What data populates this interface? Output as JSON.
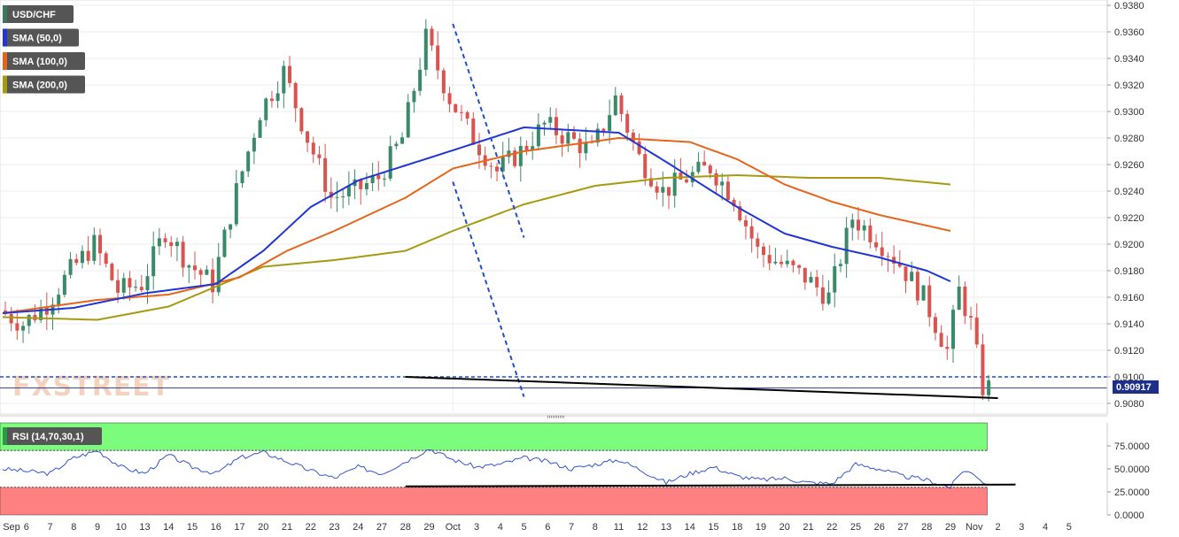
{
  "chart_data": [
    {
      "type": "candlestick",
      "symbol": "USD/CHF",
      "legend": [
        {
          "label": "USD/CHF",
          "color": "#3a7a5a"
        },
        {
          "label": "SMA (50,0)",
          "color": "#1f35d6"
        },
        {
          "label": "SMA (100,0)",
          "color": "#e6651a"
        },
        {
          "label": "SMA (200,0)",
          "color": "#a89a10"
        }
      ],
      "ylim": [
        0.9072,
        0.9384
      ],
      "yticks": [
        "0.9380",
        "0.9360",
        "0.9340",
        "0.9320",
        "0.9300",
        "0.9280",
        "0.9260",
        "0.9240",
        "0.9220",
        "0.9200",
        "0.9180",
        "0.9160",
        "0.9140",
        "0.9120",
        "0.9100",
        "0.9080"
      ],
      "last_price": "0.90917",
      "level_line": 0.91,
      "xtick_labels": [
        "Sep",
        "6",
        "7",
        "8",
        "9",
        "10",
        "13",
        "14",
        "15",
        "16",
        "17",
        "20",
        "21",
        "22",
        "23",
        "24",
        "27",
        "28",
        "29",
        "Oct",
        "3",
        "4",
        "5",
        "6",
        "7",
        "8",
        "11",
        "12",
        "13",
        "14",
        "15",
        "18",
        "19",
        "20",
        "21",
        "22",
        "25",
        "26",
        "27",
        "28",
        "29",
        "Nov",
        "2",
        "3",
        "4",
        "5"
      ],
      "trendlines": [
        {
          "name": "channel-upper",
          "style": "dashed",
          "from": [
            "Oct",
            0.9366
          ],
          "to": [
            "5",
            0.9205
          ]
        },
        {
          "name": "channel-lower",
          "style": "dashed",
          "from": [
            "Oct",
            0.9247
          ],
          "to": [
            "5",
            0.9085
          ]
        },
        {
          "name": "price-low-divergence",
          "style": "solid",
          "from": [
            "28",
            0.91
          ],
          "to": [
            "2",
            0.9084
          ]
        }
      ],
      "sma50": [
        [
          0,
          0.9148
        ],
        [
          3,
          0.9152
        ],
        [
          6,
          0.9163
        ],
        [
          9,
          0.917
        ],
        [
          11,
          0.9195
        ],
        [
          13,
          0.9228
        ],
        [
          15,
          0.9248
        ],
        [
          18,
          0.9265
        ],
        [
          22,
          0.9288
        ],
        [
          26,
          0.9284
        ],
        [
          28,
          0.9262
        ],
        [
          31,
          0.9228
        ],
        [
          33,
          0.9208
        ],
        [
          35,
          0.9198
        ],
        [
          37,
          0.919
        ],
        [
          39,
          0.918
        ],
        [
          40,
          0.9172
        ]
      ],
      "sma100": [
        [
          0,
          0.9148
        ],
        [
          4,
          0.9158
        ],
        [
          7,
          0.9162
        ],
        [
          10,
          0.9175
        ],
        [
          12,
          0.9195
        ],
        [
          14,
          0.921
        ],
        [
          17,
          0.9235
        ],
        [
          19,
          0.9257
        ],
        [
          22,
          0.927
        ],
        [
          26,
          0.928
        ],
        [
          29,
          0.9277
        ],
        [
          31,
          0.9264
        ],
        [
          33,
          0.9245
        ],
        [
          35,
          0.9232
        ],
        [
          37,
          0.9222
        ],
        [
          40,
          0.921
        ]
      ],
      "sma200": [
        [
          0,
          0.9145
        ],
        [
          4,
          0.9143
        ],
        [
          7,
          0.9153
        ],
        [
          9,
          0.9168
        ],
        [
          11,
          0.9183
        ],
        [
          14,
          0.9188
        ],
        [
          17,
          0.9195
        ],
        [
          19,
          0.921
        ],
        [
          22,
          0.923
        ],
        [
          25,
          0.9244
        ],
        [
          28,
          0.925
        ],
        [
          31,
          0.9252
        ],
        [
          34,
          0.925
        ],
        [
          37,
          0.925
        ],
        [
          40,
          0.9245
        ]
      ],
      "price_path": [
        [
          0,
          0.915
        ],
        [
          1,
          0.914
        ],
        [
          2,
          0.9155
        ],
        [
          3,
          0.918
        ],
        [
          4,
          0.92
        ],
        [
          5,
          0.9165
        ],
        [
          6,
          0.917
        ],
        [
          7,
          0.921
        ],
        [
          8,
          0.9185
        ],
        [
          9,
          0.917
        ],
        [
          10,
          0.924
        ],
        [
          11,
          0.93
        ],
        [
          12,
          0.933
        ],
        [
          13,
          0.928
        ],
        [
          14,
          0.9235
        ],
        [
          15,
          0.924
        ],
        [
          16,
          0.925
        ],
        [
          17,
          0.928
        ],
        [
          18,
          0.9355
        ],
        [
          19,
          0.931
        ],
        [
          20,
          0.928
        ],
        [
          21,
          0.9255
        ],
        [
          22,
          0.927
        ],
        [
          23,
          0.929
        ],
        [
          24,
          0.928
        ],
        [
          25,
          0.927
        ],
        [
          26,
          0.931
        ],
        [
          27,
          0.9265
        ],
        [
          28,
          0.924
        ],
        [
          29,
          0.925
        ],
        [
          30,
          0.9258
        ],
        [
          31,
          0.9235
        ],
        [
          32,
          0.9195
        ],
        [
          33,
          0.9185
        ],
        [
          34,
          0.9175
        ],
        [
          35,
          0.916
        ],
        [
          36,
          0.922
        ],
        [
          37,
          0.9205
        ],
        [
          38,
          0.9185
        ],
        [
          39,
          0.916
        ],
        [
          40,
          0.912
        ],
        [
          40.5,
          0.9165
        ],
        [
          41,
          0.914
        ],
        [
          41.5,
          0.9092
        ]
      ]
    },
    {
      "type": "line",
      "indicator": "RSI (14,70,30,1)",
      "ylim": [
        0,
        100
      ],
      "yticks": [
        "75.0000",
        "50.0000",
        "25.0000",
        "0.0000"
      ],
      "overbought": 70,
      "oversold": 30,
      "values": [
        [
          0,
          50
        ],
        [
          2,
          45
        ],
        [
          3,
          62
        ],
        [
          4,
          70
        ],
        [
          5,
          52
        ],
        [
          6,
          45
        ],
        [
          7,
          65
        ],
        [
          8,
          52
        ],
        [
          9,
          45
        ],
        [
          10,
          62
        ],
        [
          11,
          68
        ],
        [
          12,
          58
        ],
        [
          13,
          48
        ],
        [
          14,
          40
        ],
        [
          15,
          52
        ],
        [
          16,
          45
        ],
        [
          17,
          58
        ],
        [
          18,
          72
        ],
        [
          19,
          60
        ],
        [
          20,
          52
        ],
        [
          21,
          55
        ],
        [
          22,
          62
        ],
        [
          23,
          58
        ],
        [
          24,
          50
        ],
        [
          25,
          55
        ],
        [
          26,
          60
        ],
        [
          27,
          48
        ],
        [
          28,
          35
        ],
        [
          29,
          45
        ],
        [
          30,
          52
        ],
        [
          31,
          42
        ],
        [
          32,
          38
        ],
        [
          33,
          40
        ],
        [
          34,
          35
        ],
        [
          35,
          34
        ],
        [
          36,
          55
        ],
        [
          37,
          50
        ],
        [
          38,
          42
        ],
        [
          39,
          38
        ],
        [
          40,
          30
        ],
        [
          40.5,
          48
        ],
        [
          41,
          45
        ],
        [
          41.5,
          33
        ]
      ],
      "trendline": {
        "from": [
          "28",
          31
        ],
        "to": [
          "2",
          33
        ]
      }
    }
  ],
  "watermark": "FXSTREET",
  "colors": {
    "bull": "#3a8a6a",
    "bear": "#d9534f",
    "sma50": "#1f35d6",
    "sma100": "#e6651a",
    "sma200": "#a89a10",
    "trend": "#1f4fc0",
    "rsi": "#3355cc",
    "overbought_fill": "#7cfc7c",
    "oversold_fill": "#ff8080"
  }
}
